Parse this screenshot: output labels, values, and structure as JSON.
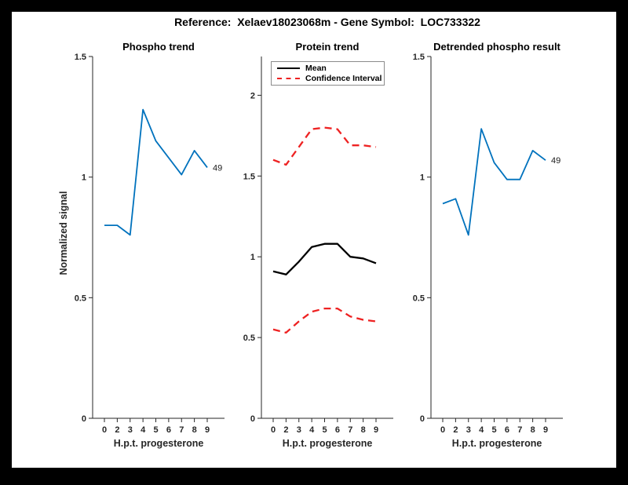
{
  "figure_title": "Reference:  Xelaev18023068m - Gene Symbol:  LOC733322",
  "colors": {
    "blue": "#0072BD",
    "red": "#ee2222",
    "black": "#000000",
    "axis": "#262626"
  },
  "ylabel": "Normalized signal",
  "chart_data": [
    {
      "type": "line",
      "title": "Phospho trend",
      "xlabel": "H.p.t. progesterone",
      "ylabel": "Normalized signal",
      "x_tick_labels": [
        "0",
        "2",
        "3",
        "4",
        "5",
        "6",
        "7",
        "8",
        "9"
      ],
      "yticks": [
        0,
        0.5,
        1,
        1.5
      ],
      "ylim": [
        0,
        1.5
      ],
      "grid": false,
      "end_label": "49",
      "series": [
        {
          "name": "phospho-signal",
          "color": "blue",
          "style": "solid",
          "width": 1.8,
          "values": [
            0.8,
            0.8,
            0.76,
            1.28,
            1.15,
            1.08,
            1.01,
            1.11,
            1.04
          ]
        }
      ]
    },
    {
      "type": "line",
      "title": "Protein trend",
      "xlabel": "H.p.t. progesterone",
      "x_tick_labels": [
        "0",
        "2",
        "3",
        "4",
        "5",
        "6",
        "7",
        "8",
        "9"
      ],
      "yticks": [
        0,
        0.5,
        1,
        1.5,
        2
      ],
      "ylim": [
        0,
        2.24
      ],
      "grid": false,
      "legend": {
        "position": "top-left",
        "entries": [
          {
            "label": "Mean",
            "color": "black",
            "style": "solid"
          },
          {
            "label": "Confidence Interval",
            "color": "red",
            "style": "dashed"
          }
        ]
      },
      "series": [
        {
          "name": "mean",
          "color": "black",
          "style": "solid",
          "width": 2.3,
          "values": [
            0.91,
            0.89,
            0.97,
            1.06,
            1.08,
            1.08,
            1.0,
            0.99,
            0.96
          ]
        },
        {
          "name": "confidence-upper",
          "color": "red",
          "style": "dashed",
          "width": 2.3,
          "values": [
            1.6,
            1.57,
            1.68,
            1.79,
            1.8,
            1.79,
            1.69,
            1.69,
            1.68
          ]
        },
        {
          "name": "confidence-lower",
          "color": "red",
          "style": "dashed",
          "width": 2.3,
          "values": [
            0.55,
            0.53,
            0.6,
            0.66,
            0.68,
            0.68,
            0.63,
            0.61,
            0.6
          ]
        }
      ]
    },
    {
      "type": "line",
      "title": "Detrended phospho result",
      "xlabel": "H.p.t. progesterone",
      "x_tick_labels": [
        "0",
        "2",
        "3",
        "4",
        "5",
        "6",
        "7",
        "8",
        "9"
      ],
      "yticks": [
        0,
        0.5,
        1,
        1.5
      ],
      "ylim": [
        0,
        1.5
      ],
      "grid": false,
      "end_label": "49",
      "series": [
        {
          "name": "detrended-phospho-signal",
          "color": "blue",
          "style": "solid",
          "width": 1.8,
          "values": [
            0.89,
            0.91,
            0.76,
            1.2,
            1.06,
            0.99,
            0.99,
            1.11,
            1.07
          ]
        }
      ]
    }
  ]
}
